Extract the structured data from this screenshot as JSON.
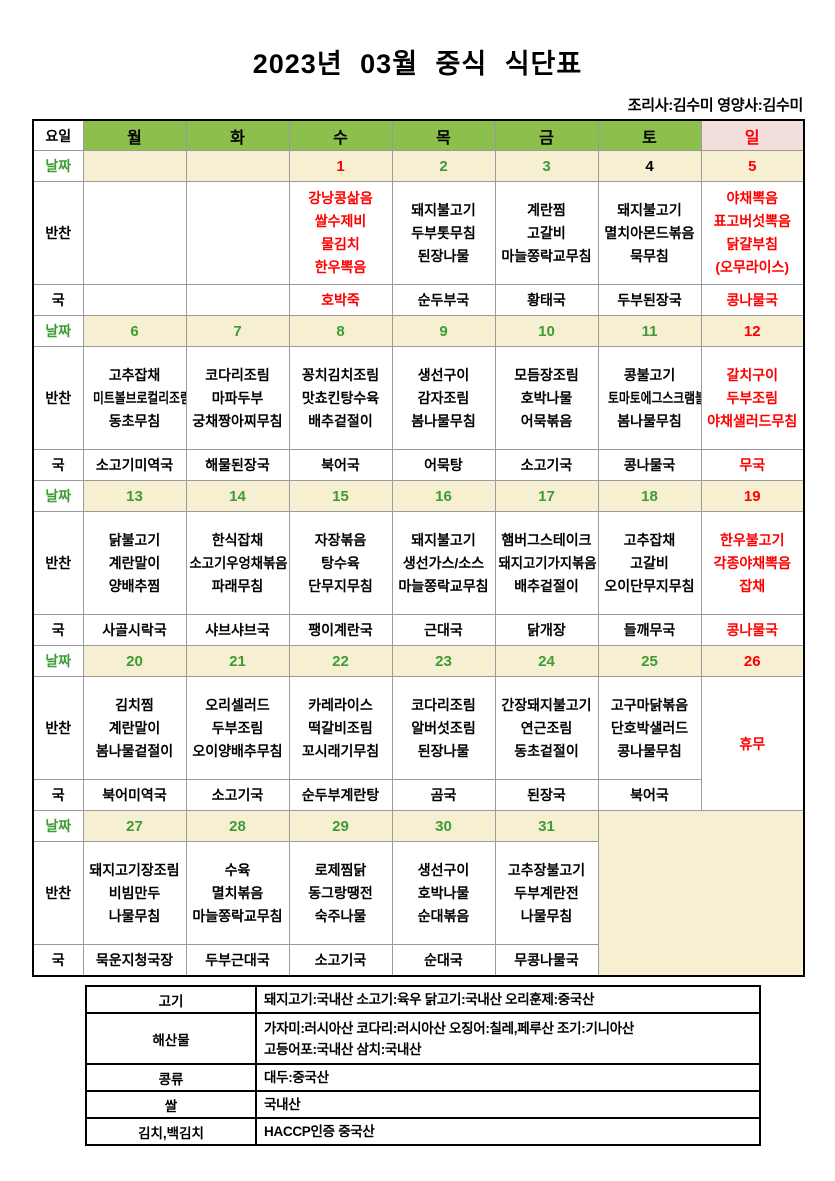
{
  "title": "2023년 03월 중식 식단표",
  "staff": "조리사:김수미 영양사:김수미",
  "colors": {
    "header_green": "#8dbf4c",
    "sunday_pink": "#f2dedd",
    "date_beige": "#f7efd2",
    "accent_red": "#ff0000",
    "date_green": "#3f9b35",
    "grid_gray": "#9b9b9b",
    "border_black": "#000000"
  },
  "labels": {
    "corner": "요일",
    "date": "날짜",
    "side": "반찬",
    "soup": "국"
  },
  "day_headers": [
    {
      "label": "월",
      "red": false
    },
    {
      "label": "화",
      "red": false
    },
    {
      "label": "수",
      "red": false
    },
    {
      "label": "목",
      "red": false
    },
    {
      "label": "금",
      "red": false
    },
    {
      "label": "토",
      "red": false
    },
    {
      "label": "일",
      "red": true
    }
  ],
  "weeks": [
    {
      "days": [
        {
          "date": "",
          "dc": "none",
          "menu": [],
          "soup": "",
          "red": false
        },
        {
          "date": "",
          "dc": "none",
          "menu": [],
          "soup": "",
          "red": false
        },
        {
          "date": "1",
          "dc": "red",
          "menu": [
            "강낭콩삶음",
            "쌀수제비",
            "물김치",
            "한우뽁음"
          ],
          "soup": "호박죽",
          "red": true
        },
        {
          "date": "2",
          "dc": "green",
          "menu": [
            "돼지불고기",
            "두부톳무침",
            "된장나물"
          ],
          "soup": "순두부국",
          "red": false
        },
        {
          "date": "3",
          "dc": "green",
          "menu": [
            "계란찜",
            "고갈비",
            "마늘쫑락교무침"
          ],
          "soup": "황태국",
          "red": false
        },
        {
          "date": "4",
          "dc": "black",
          "menu": [
            "돼지불고기",
            "멸치아몬드볶음",
            "묵무침"
          ],
          "soup": "두부된장국",
          "red": false
        },
        {
          "date": "5",
          "dc": "red",
          "menu": [
            "야채뽁음",
            "표고버섯뽁음",
            "닭걀부침",
            "(오무라이스)"
          ],
          "soup": "콩나물국",
          "red": true
        }
      ]
    },
    {
      "days": [
        {
          "date": "6",
          "dc": "green",
          "menu": [
            "고추잡채",
            "미트볼브로컬리조림",
            "동초무침"
          ],
          "soup": "소고기미역국",
          "red": false
        },
        {
          "date": "7",
          "dc": "green",
          "menu": [
            "코다리조림",
            "마파두부",
            "궁채짱아찌무침"
          ],
          "soup": "해물된장국",
          "red": false
        },
        {
          "date": "8",
          "dc": "green",
          "menu": [
            "꽁치김치조림",
            "맛쵸킨탕수육",
            "배추겉절이"
          ],
          "soup": "북어국",
          "red": false
        },
        {
          "date": "9",
          "dc": "green",
          "menu": [
            "생선구이",
            "감자조림",
            "봄나물무침"
          ],
          "soup": "어묵탕",
          "red": false
        },
        {
          "date": "10",
          "dc": "green",
          "menu": [
            "모듬장조림",
            "호박나물",
            "어묵볶음"
          ],
          "soup": "소고기국",
          "red": false
        },
        {
          "date": "11",
          "dc": "green",
          "menu": [
            "콩불고기",
            "토마토에그스크램블",
            "봄나물무침"
          ],
          "soup": "콩나물국",
          "red": false
        },
        {
          "date": "12",
          "dc": "red",
          "menu": [
            "갈치구이",
            "두부조림",
            "야채샐러드무침"
          ],
          "soup": "무국",
          "red": true
        }
      ]
    },
    {
      "days": [
        {
          "date": "13",
          "dc": "green",
          "menu": [
            "닭불고기",
            "계란말이",
            "양배추찜"
          ],
          "soup": "사골시락국",
          "red": false
        },
        {
          "date": "14",
          "dc": "green",
          "menu": [
            "한식잡채",
            "소고기우엉채볶음",
            "파래무침"
          ],
          "soup": "샤브샤브국",
          "red": false
        },
        {
          "date": "15",
          "dc": "green",
          "menu": [
            "자장볶음",
            "탕수육",
            "단무지무침"
          ],
          "soup": "팽이계란국",
          "red": false
        },
        {
          "date": "16",
          "dc": "green",
          "menu": [
            "돼지불고기",
            "생선가스/소스",
            "마늘쫑락교무침"
          ],
          "soup": "근대국",
          "red": false
        },
        {
          "date": "17",
          "dc": "green",
          "menu": [
            "햄버그스테이크",
            "돼지고기가지볶음",
            "배추겉절이"
          ],
          "soup": "닭개장",
          "red": false
        },
        {
          "date": "18",
          "dc": "green",
          "menu": [
            "고추잡채",
            "고갈비",
            "오이단무지무침"
          ],
          "soup": "들깨무국",
          "red": false
        },
        {
          "date": "19",
          "dc": "red",
          "menu": [
            "한우불고기",
            "각종야채뽁음",
            "잡채"
          ],
          "soup": "콩나물국",
          "red": true
        }
      ]
    },
    {
      "days": [
        {
          "date": "20",
          "dc": "green",
          "menu": [
            "김치찜",
            "계란말이",
            "봄나물겉절이"
          ],
          "soup": "북어미역국",
          "red": false
        },
        {
          "date": "21",
          "dc": "green",
          "menu": [
            "오리셀러드",
            "두부조림",
            "오이양배추무침"
          ],
          "soup": "소고기국",
          "red": false
        },
        {
          "date": "22",
          "dc": "green",
          "menu": [
            "카레라이스",
            "떡갈비조림",
            "꼬시래기무침"
          ],
          "soup": "순두부계란탕",
          "red": false
        },
        {
          "date": "23",
          "dc": "green",
          "menu": [
            "코다리조림",
            "알버섯조림",
            "된장나물"
          ],
          "soup": "곰국",
          "red": false
        },
        {
          "date": "24",
          "dc": "green",
          "menu": [
            "간장돼지불고기",
            "연근조림",
            "동초겉절이"
          ],
          "soup": "된장국",
          "red": false
        },
        {
          "date": "25",
          "dc": "green",
          "menu": [
            "고구마닭볶음",
            "단호박샐러드",
            "콩나물무침"
          ],
          "soup": "북어국",
          "red": false
        },
        {
          "date": "26",
          "dc": "red",
          "holiday": "휴무"
        }
      ]
    },
    {
      "blank_cols": 2,
      "days": [
        {
          "date": "27",
          "dc": "green",
          "menu": [
            "돼지고기장조림",
            "비빔만두",
            "나물무침"
          ],
          "soup": "묵운지청국장",
          "red": false
        },
        {
          "date": "28",
          "dc": "green",
          "menu": [
            "수육",
            "멸치볶음",
            "마늘쫑락교무침"
          ],
          "soup": "두부근대국",
          "red": false
        },
        {
          "date": "29",
          "dc": "green",
          "menu": [
            "로제찜닭",
            "동그랑땡전",
            "숙주나물"
          ],
          "soup": "소고기국",
          "red": false
        },
        {
          "date": "30",
          "dc": "green",
          "menu": [
            "생선구이",
            "호박나물",
            "순대볶음"
          ],
          "soup": "순대국",
          "red": false
        },
        {
          "date": "31",
          "dc": "green",
          "menu": [
            "고추장불고기",
            "두부계란전",
            "나물무침"
          ],
          "soup": "무콩나물국",
          "red": false
        }
      ]
    }
  ],
  "origin_rows": [
    {
      "label": "고기",
      "lines": [
        "돼지고기:국내산 소고기:육우 닭고기:국내산 오리훈제:중국산"
      ]
    },
    {
      "label": "해산물",
      "lines": [
        "가자미:러시아산  코다리:러시아산  오징어:칠레,페루산  조기:기니아산",
        "고등어포:국내산 삼치:국내산"
      ]
    },
    {
      "label": "콩류",
      "lines": [
        "대두:중국산"
      ]
    },
    {
      "label": "쌀",
      "lines": [
        "국내산"
      ]
    },
    {
      "label": "김치,백김치",
      "lines": [
        "HACCP인증 중국산"
      ]
    }
  ]
}
